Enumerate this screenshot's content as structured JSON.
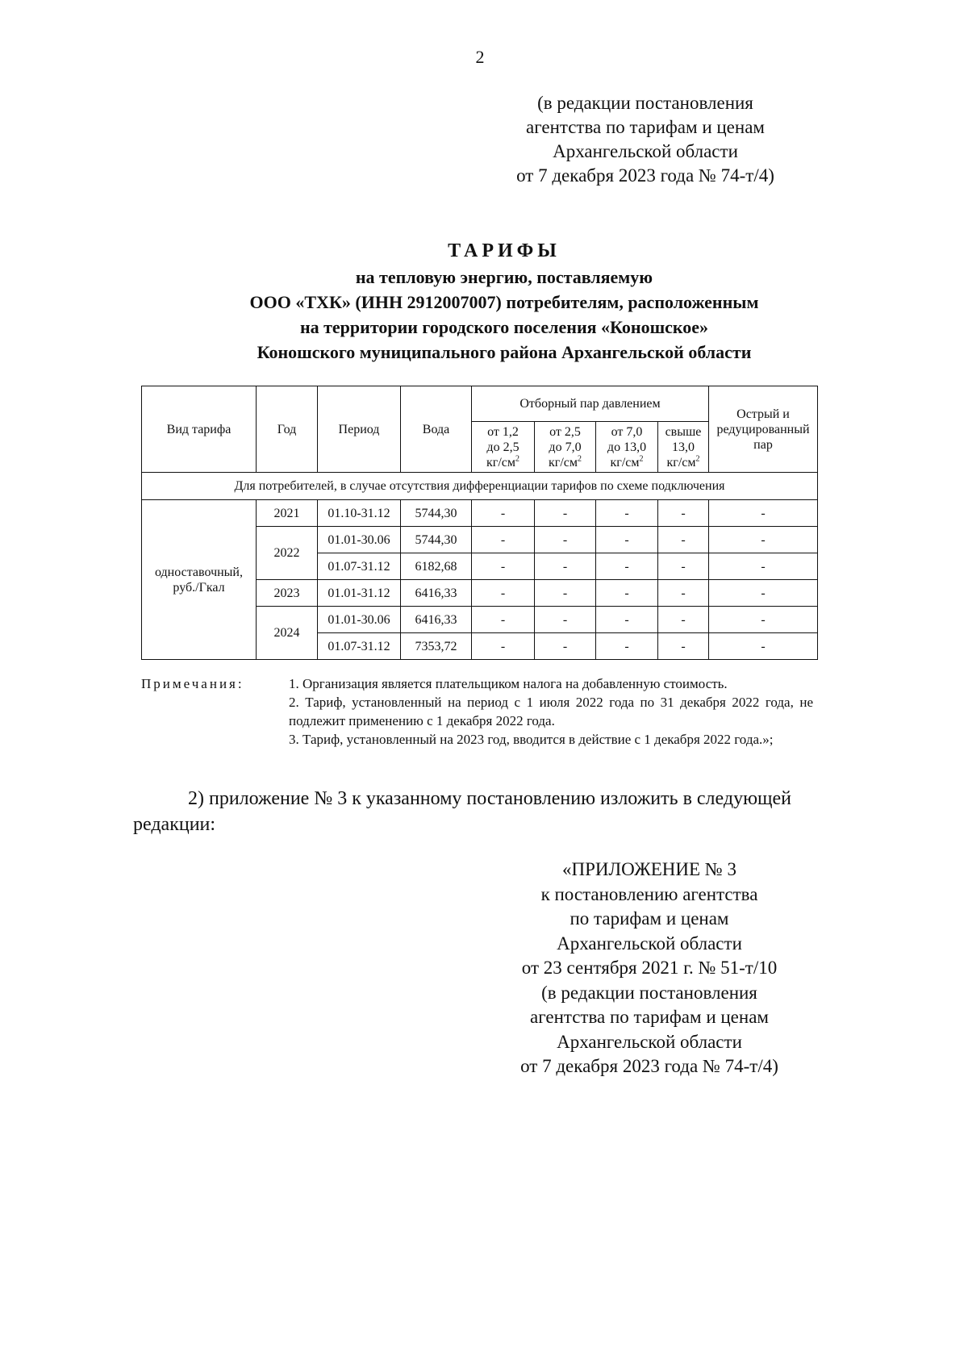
{
  "page_number": "2",
  "header_block": [
    "(в редакции постановления",
    "агентства по тарифам и ценам",
    "Архангельской области",
    "от 7 декабря 2023 года № 74-т/4)"
  ],
  "title": {
    "main": "ТАРИФЫ",
    "lines": [
      "на тепловую энергию, поставляемую",
      "ООО «ТХК» (ИНН 2912007007) потребителям, расположенным",
      "на территории городского поселения «Коношское»",
      "Коношского муниципального района Архангельской области"
    ]
  },
  "table": {
    "headers": {
      "type": "Вид тарифа",
      "year": "Год",
      "period": "Период",
      "water": "Вода",
      "steam_group": "Отборный пар давлением",
      "sharp": "Острый и редуцированный пар",
      "steam_cols": [
        [
          "от 1,2",
          "до 2,5",
          "кг/см"
        ],
        [
          "от 2,5",
          "до 7,0",
          "кг/см"
        ],
        [
          "от 7,0",
          "до 13,0",
          "кг/см"
        ],
        [
          "свыше",
          "13,0",
          "кг/см"
        ]
      ],
      "sup": "2"
    },
    "section": "Для потребителей, в случае отсутствия дифференциации тарифов по схеме подключения",
    "tariff_type": "одноставочный, руб./Гкал",
    "years": [
      "2021",
      "2022",
      "2023",
      "2024"
    ],
    "rows": [
      {
        "period": "01.10-31.12",
        "water": "5744,30",
        "c": [
          "-",
          "-",
          "-",
          "-",
          "-"
        ]
      },
      {
        "period": "01.01-30.06",
        "water": "5744,30",
        "c": [
          "-",
          "-",
          "-",
          "-",
          "-"
        ]
      },
      {
        "period": "01.07-31.12",
        "water": "6182,68",
        "c": [
          "-",
          "-",
          "-",
          "-",
          "-"
        ]
      },
      {
        "period": "01.01-31.12",
        "water": "6416,33",
        "c": [
          "-",
          "-",
          "-",
          "-",
          "-"
        ]
      },
      {
        "period": "01.01-30.06",
        "water": "6416,33",
        "c": [
          "-",
          "-",
          "-",
          "-",
          "-"
        ]
      },
      {
        "period": "01.07-31.12",
        "water": "7353,72",
        "c": [
          "-",
          "-",
          "-",
          "-",
          "-"
        ]
      }
    ]
  },
  "notes": {
    "label": "Примечания:",
    "items": [
      "1. Организация является плательщиком налога на добавленную стоимость.",
      "2. Тариф, установленный на период с 1 июля 2022 года по 31 декабря 2022 года, не подлежит применению с 1 декабря 2022 года.",
      "3. Тариф, установленный на 2023 год, вводится в действие с 1 декабря 2022 года.»;"
    ]
  },
  "paragraph": "2) приложение № 3 к указанному постановлению изложить в следующей редакции:",
  "appendix_block": [
    "«ПРИЛОЖЕНИЕ № 3",
    "к постановлению агентства",
    "по тарифам и ценам",
    "Архангельской области",
    "от 23 сентября 2021 г. № 51-т/10",
    "(в редакции постановления",
    "агентства по тарифам и ценам",
    "Архангельской области",
    "от 7 декабря 2023 года № 74-т/4)"
  ]
}
